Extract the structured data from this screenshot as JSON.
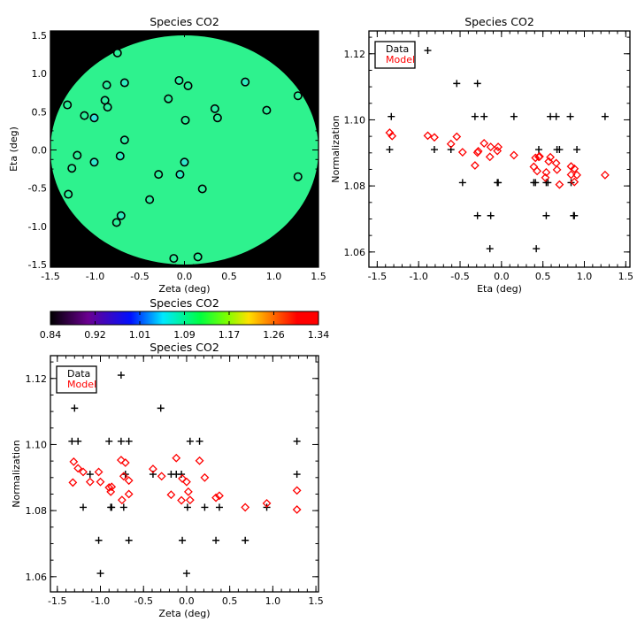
{
  "chart_data": [
    {
      "id": "map",
      "type": "heatmap",
      "title": "Species CO2",
      "xlabel": "Zeta (deg)",
      "ylabel": "Eta (deg)",
      "xlim": [
        -1.5,
        1.5
      ],
      "ylim": [
        -1.535,
        1.558
      ],
      "xticks": [
        "-1.5",
        "-1.0",
        "-0.5",
        "0.0",
        "0.5",
        "1.0",
        "1.5"
      ],
      "yticks": [
        "-1.5",
        "-1.0",
        "-0.5",
        "0.0",
        "0.5",
        "1.0",
        "1.5"
      ],
      "field_value": 1.09,
      "field_color": "#2ef28e",
      "background_color": "#000000",
      "circles": [
        {
          "zeta": -0.75,
          "eta": 1.27,
          "color": "#2ef29a"
        },
        {
          "zeta": -0.67,
          "eta": 0.88,
          "color": "#30ecc0"
        },
        {
          "zeta": -0.87,
          "eta": 0.85,
          "color": "#2ef2a0"
        },
        {
          "zeta": -0.89,
          "eta": 0.65,
          "color": "#2ef2a0"
        },
        {
          "zeta": -0.86,
          "eta": 0.56,
          "color": "#2ef2a0"
        },
        {
          "zeta": -1.31,
          "eta": 0.59,
          "color": "#2ef29a"
        },
        {
          "zeta": -1.12,
          "eta": 0.45,
          "color": "#2ef29a"
        },
        {
          "zeta": -1.01,
          "eta": 0.42,
          "color": "#34e4dc"
        },
        {
          "zeta": -0.67,
          "eta": 0.13,
          "color": "#2ef2a6"
        },
        {
          "zeta": -1.2,
          "eta": -0.07,
          "color": "#2ef29a"
        },
        {
          "zeta": -1.01,
          "eta": -0.16,
          "color": "#32e8cc"
        },
        {
          "zeta": -0.72,
          "eta": -0.08,
          "color": "#30ecc0"
        },
        {
          "zeta": -1.26,
          "eta": -0.24,
          "color": "#2ef29a"
        },
        {
          "zeta": -1.3,
          "eta": -0.58,
          "color": "#2ef29a"
        },
        {
          "zeta": -0.39,
          "eta": -0.65,
          "color": "#2ef2a0"
        },
        {
          "zeta": -0.29,
          "eta": -0.32,
          "color": "#2ef29a"
        },
        {
          "zeta": -0.71,
          "eta": -0.86,
          "color": "#30ecc0"
        },
        {
          "zeta": -0.76,
          "eta": -0.95,
          "color": "#2ef29a"
        },
        {
          "zeta": -0.12,
          "eta": -1.42,
          "color": "#2ef29a"
        },
        {
          "zeta": 0.15,
          "eta": -1.4,
          "color": "#2ef29a"
        },
        {
          "zeta": -0.06,
          "eta": 0.91,
          "color": "#2ef2a6"
        },
        {
          "zeta": 0.04,
          "eta": 0.84,
          "color": "#2ef29a"
        },
        {
          "zeta": -0.18,
          "eta": 0.67,
          "color": "#2ef29a"
        },
        {
          "zeta": 0.01,
          "eta": 0.39,
          "color": "#2ef29a"
        },
        {
          "zeta": 0.0,
          "eta": -0.16,
          "color": "#32e8cc"
        },
        {
          "zeta": -0.05,
          "eta": -0.32,
          "color": "#30ecc0"
        },
        {
          "zeta": 0.2,
          "eta": -0.51,
          "color": "#2ef29a"
        },
        {
          "zeta": 0.34,
          "eta": 0.54,
          "color": "#2ef2a6"
        },
        {
          "zeta": 0.37,
          "eta": 0.42,
          "color": "#2ef29a"
        },
        {
          "zeta": 0.68,
          "eta": 0.89,
          "color": "#30ecc0"
        },
        {
          "zeta": 0.92,
          "eta": 0.52,
          "color": "#2ef29a"
        },
        {
          "zeta": 1.27,
          "eta": 0.71,
          "color": "#2ef29a"
        },
        {
          "zeta": 1.27,
          "eta": -0.35,
          "color": "#2ef29a"
        }
      ]
    },
    {
      "id": "colorbar",
      "type": "colorbar",
      "title": "Species CO2",
      "range": [
        0.84,
        1.34
      ],
      "ticks": [
        "0.84",
        "0.92",
        "1.01",
        "1.09",
        "1.17",
        "1.26",
        "1.34"
      ],
      "stops": [
        {
          "at": 0.0,
          "color": "#000000"
        },
        {
          "at": 0.14,
          "color": "#6a0090"
        },
        {
          "at": 0.3,
          "color": "#0010ff"
        },
        {
          "at": 0.42,
          "color": "#00e8ff"
        },
        {
          "at": 0.56,
          "color": "#00ff40"
        },
        {
          "at": 0.66,
          "color": "#80ff00"
        },
        {
          "at": 0.74,
          "color": "#ffe000"
        },
        {
          "at": 0.84,
          "color": "#ff6000"
        },
        {
          "at": 0.92,
          "color": "#ff0000"
        },
        {
          "at": 1.0,
          "color": "#ff0000"
        }
      ]
    },
    {
      "id": "eta-plot",
      "type": "scatter",
      "title": "Species CO2",
      "xlabel": "Eta (deg)",
      "ylabel": "Normalization",
      "xlim": [
        -1.6,
        1.55
      ],
      "ylim": [
        1.0554,
        1.1269
      ],
      "xticks": [
        "-1.5",
        "-1.0",
        "-0.5",
        "0.0",
        "0.5",
        "1.0",
        "1.5"
      ],
      "yticks": [
        "1.06",
        "1.08",
        "1.10",
        "1.12"
      ],
      "legend": {
        "position": "top-left",
        "entries": [
          {
            "label": "Data",
            "color": "#000000"
          },
          {
            "label": "Model",
            "color": "#ff0000"
          }
        ]
      },
      "series": [
        {
          "name": "Data",
          "marker": "plus",
          "color": "#000000",
          "x": [
            -1.33,
            -1.35,
            -0.89,
            -0.81,
            -0.54,
            -0.61,
            -0.47,
            -0.29,
            -0.32,
            -0.21,
            -0.29,
            -0.13,
            -0.14,
            -0.05,
            -0.04,
            0.15,
            0.45,
            0.39,
            0.41,
            0.42,
            0.54,
            0.56,
            0.54,
            0.59,
            0.66,
            0.67,
            0.7,
            0.83,
            0.91,
            0.84,
            0.87,
            0.88,
            1.25
          ],
          "y": [
            1.101,
            1.091,
            1.121,
            1.091,
            1.111,
            1.091,
            1.081,
            1.111,
            1.101,
            1.101,
            1.071,
            1.071,
            1.061,
            1.081,
            1.081,
            1.101,
            1.091,
            1.081,
            1.081,
            1.061,
            1.081,
            1.081,
            1.071,
            1.101,
            1.101,
            1.091,
            1.091,
            1.101,
            1.091,
            1.081,
            1.071,
            1.071,
            1.101
          ]
        },
        {
          "name": "Model",
          "marker": "diamond",
          "color": "#ff0000",
          "x": [
            -1.35,
            -1.32,
            -0.89,
            -0.81,
            -0.61,
            -0.54,
            -0.47,
            -0.32,
            -0.29,
            -0.28,
            -0.21,
            -0.14,
            -0.13,
            -0.05,
            -0.04,
            0.15,
            0.39,
            0.41,
            0.43,
            0.45,
            0.46,
            0.53,
            0.54,
            0.57,
            0.59,
            0.66,
            0.67,
            0.7,
            0.84,
            0.84,
            0.88,
            0.88,
            0.91,
            1.25
          ],
          "y": [
            1.0961,
            1.0951,
            1.0952,
            1.0947,
            1.0927,
            1.0949,
            1.0902,
            1.0862,
            1.0901,
            1.0905,
            1.0929,
            1.0888,
            1.0918,
            1.0906,
            1.0918,
            1.0893,
            1.0858,
            1.0885,
            1.0845,
            1.0888,
            1.0889,
            1.0825,
            1.0841,
            1.0874,
            1.0887,
            1.0869,
            1.0849,
            1.0804,
            1.0859,
            1.0834,
            1.0852,
            1.0812,
            1.0833,
            1.0833
          ]
        }
      ]
    },
    {
      "id": "zeta-plot",
      "type": "scatter",
      "title": "Species CO2",
      "xlabel": "Zeta (deg)",
      "ylabel": "Normalization",
      "xlim": [
        -1.58,
        1.53
      ],
      "ylim": [
        1.0554,
        1.1269
      ],
      "xticks": [
        "-1.5",
        "-1.0",
        "-0.5",
        "0.0",
        "0.5",
        "1.0",
        "1.5"
      ],
      "yticks": [
        "1.06",
        "1.08",
        "1.10",
        "1.12"
      ],
      "legend": {
        "position": "top-left",
        "entries": [
          {
            "label": "Data",
            "color": "#000000"
          },
          {
            "label": "Model",
            "color": "#ff0000"
          }
        ]
      },
      "series": [
        {
          "name": "Data",
          "marker": "plus",
          "color": "#000000",
          "x": [
            -1.3,
            -1.33,
            -1.26,
            -1.2,
            -1.12,
            -1.02,
            -1.0,
            -0.9,
            -0.87,
            -0.88,
            -0.76,
            -0.67,
            -0.76,
            -0.73,
            -0.71,
            -0.67,
            -0.39,
            -0.3,
            -0.18,
            -0.12,
            -0.06,
            -0.05,
            0.0,
            0.01,
            0.04,
            0.15,
            0.21,
            0.34,
            0.38,
            0.68,
            0.93,
            1.28,
            1.28
          ],
          "y": [
            1.111,
            1.101,
            1.101,
            1.081,
            1.091,
            1.071,
            1.061,
            1.101,
            1.081,
            1.081,
            1.101,
            1.101,
            1.121,
            1.081,
            1.091,
            1.071,
            1.091,
            1.111,
            1.091,
            1.091,
            1.091,
            1.071,
            1.061,
            1.081,
            1.101,
            1.101,
            1.081,
            1.071,
            1.081,
            1.071,
            1.081,
            1.101,
            1.091
          ]
        },
        {
          "name": "Model",
          "marker": "diamond",
          "color": "#ff0000",
          "x": [
            -1.31,
            -1.32,
            -1.26,
            -1.2,
            -1.12,
            -1.02,
            -1.0,
            -0.9,
            -0.87,
            -0.88,
            -0.76,
            -0.75,
            -0.71,
            -0.73,
            -0.67,
            -0.67,
            -0.39,
            -0.29,
            -0.18,
            -0.12,
            -0.05,
            -0.06,
            0.0,
            0.02,
            0.04,
            0.15,
            0.21,
            0.34,
            0.38,
            0.68,
            0.93,
            1.28,
            1.28
          ],
          "y": [
            1.0948,
            1.0885,
            1.0928,
            1.0917,
            1.0887,
            1.0917,
            1.0887,
            1.087,
            1.0872,
            1.0857,
            1.0953,
            1.0832,
            1.0945,
            1.0904,
            1.0891,
            1.085,
            1.0926,
            1.0904,
            1.0848,
            1.0959,
            1.0897,
            1.0831,
            1.0887,
            1.0857,
            1.0832,
            1.0951,
            1.09,
            1.0839,
            1.0845,
            1.081,
            1.0822,
            1.0861,
            1.0803
          ]
        }
      ]
    }
  ]
}
